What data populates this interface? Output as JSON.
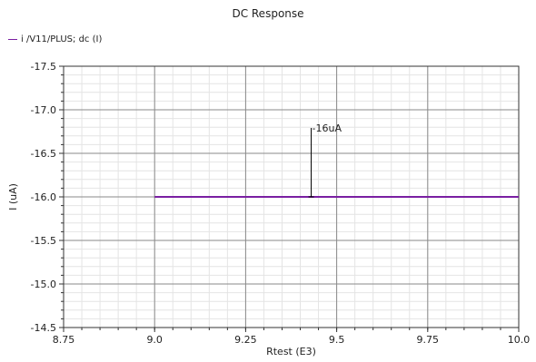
{
  "chart_data": {
    "type": "line",
    "title": "DC Response",
    "xlabel": "Rtest (E3)",
    "ylabel": "I (uA)",
    "xlim": [
      8.75,
      10.0
    ],
    "ylim": [
      -17.5,
      -14.5
    ],
    "x_ticks": [
      "8.75",
      "9.0",
      "9.25",
      "9.5",
      "9.75",
      "10.0"
    ],
    "y_ticks": [
      "-17.5",
      "-17.0",
      "-16.5",
      "-16.0",
      "-15.5",
      "-15.0",
      "-14.5"
    ],
    "grid": true,
    "legend": "top-left",
    "series": [
      {
        "name": "i /V11/PLUS; dc (I)",
        "color": "#7a1fa2",
        "x": [
          9.0,
          10.0
        ],
        "y": [
          -16.0,
          -16.0
        ]
      }
    ],
    "annotations": [
      {
        "text": "-16uA",
        "x": 9.43,
        "y": -16.0
      }
    ]
  }
}
